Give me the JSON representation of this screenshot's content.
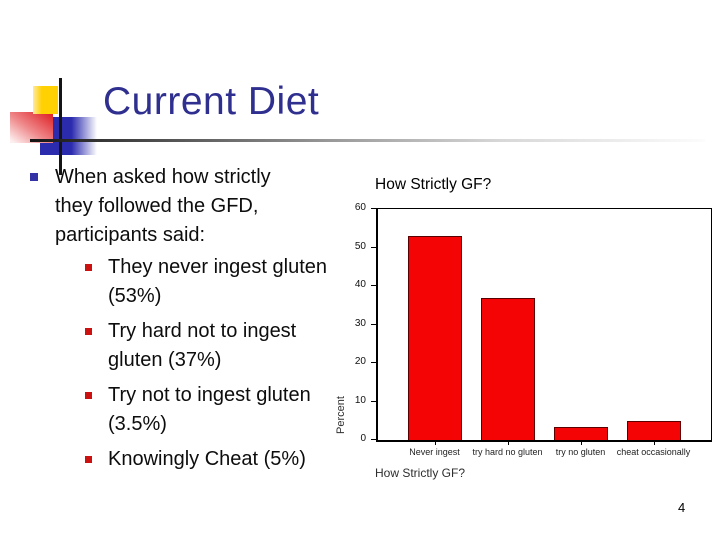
{
  "slide": {
    "title": "Current Diet",
    "page_number": "4",
    "accent_colors": {
      "title_text": "#2f2f8f",
      "bullet_level1": "#3333a6",
      "bullet_level2": "#cc1111",
      "logo_yellow": "#ffd103",
      "logo_red": "#df2429",
      "logo_blue": "#2b2bae",
      "bar_red": "#f40404"
    }
  },
  "bullets": {
    "intro": "When asked how strictly they followed the GFD, participants said:",
    "sub": [
      {
        "text": "They never ingest gluten (53%)"
      },
      {
        "text": "Try hard not to ingest gluten (37%)"
      },
      {
        "text": "Try not to ingest gluten (3.5%)"
      },
      {
        "text": "Knowingly Cheat (5%)"
      }
    ]
  },
  "chart_data": {
    "type": "bar",
    "title": "How Strictly GF?",
    "xlabel": "How Strictly GF?",
    "ylabel": "Percent",
    "categories": [
      "Never ingest",
      "try hard no gluten",
      "try no gluten",
      "cheat occasionally"
    ],
    "values": [
      53,
      37,
      3.5,
      5
    ],
    "ylim": [
      0,
      60
    ],
    "yticks": [
      0,
      10,
      20,
      30,
      40,
      50,
      60
    ],
    "grid": false,
    "legend": false,
    "bar_color": "#f40404"
  }
}
